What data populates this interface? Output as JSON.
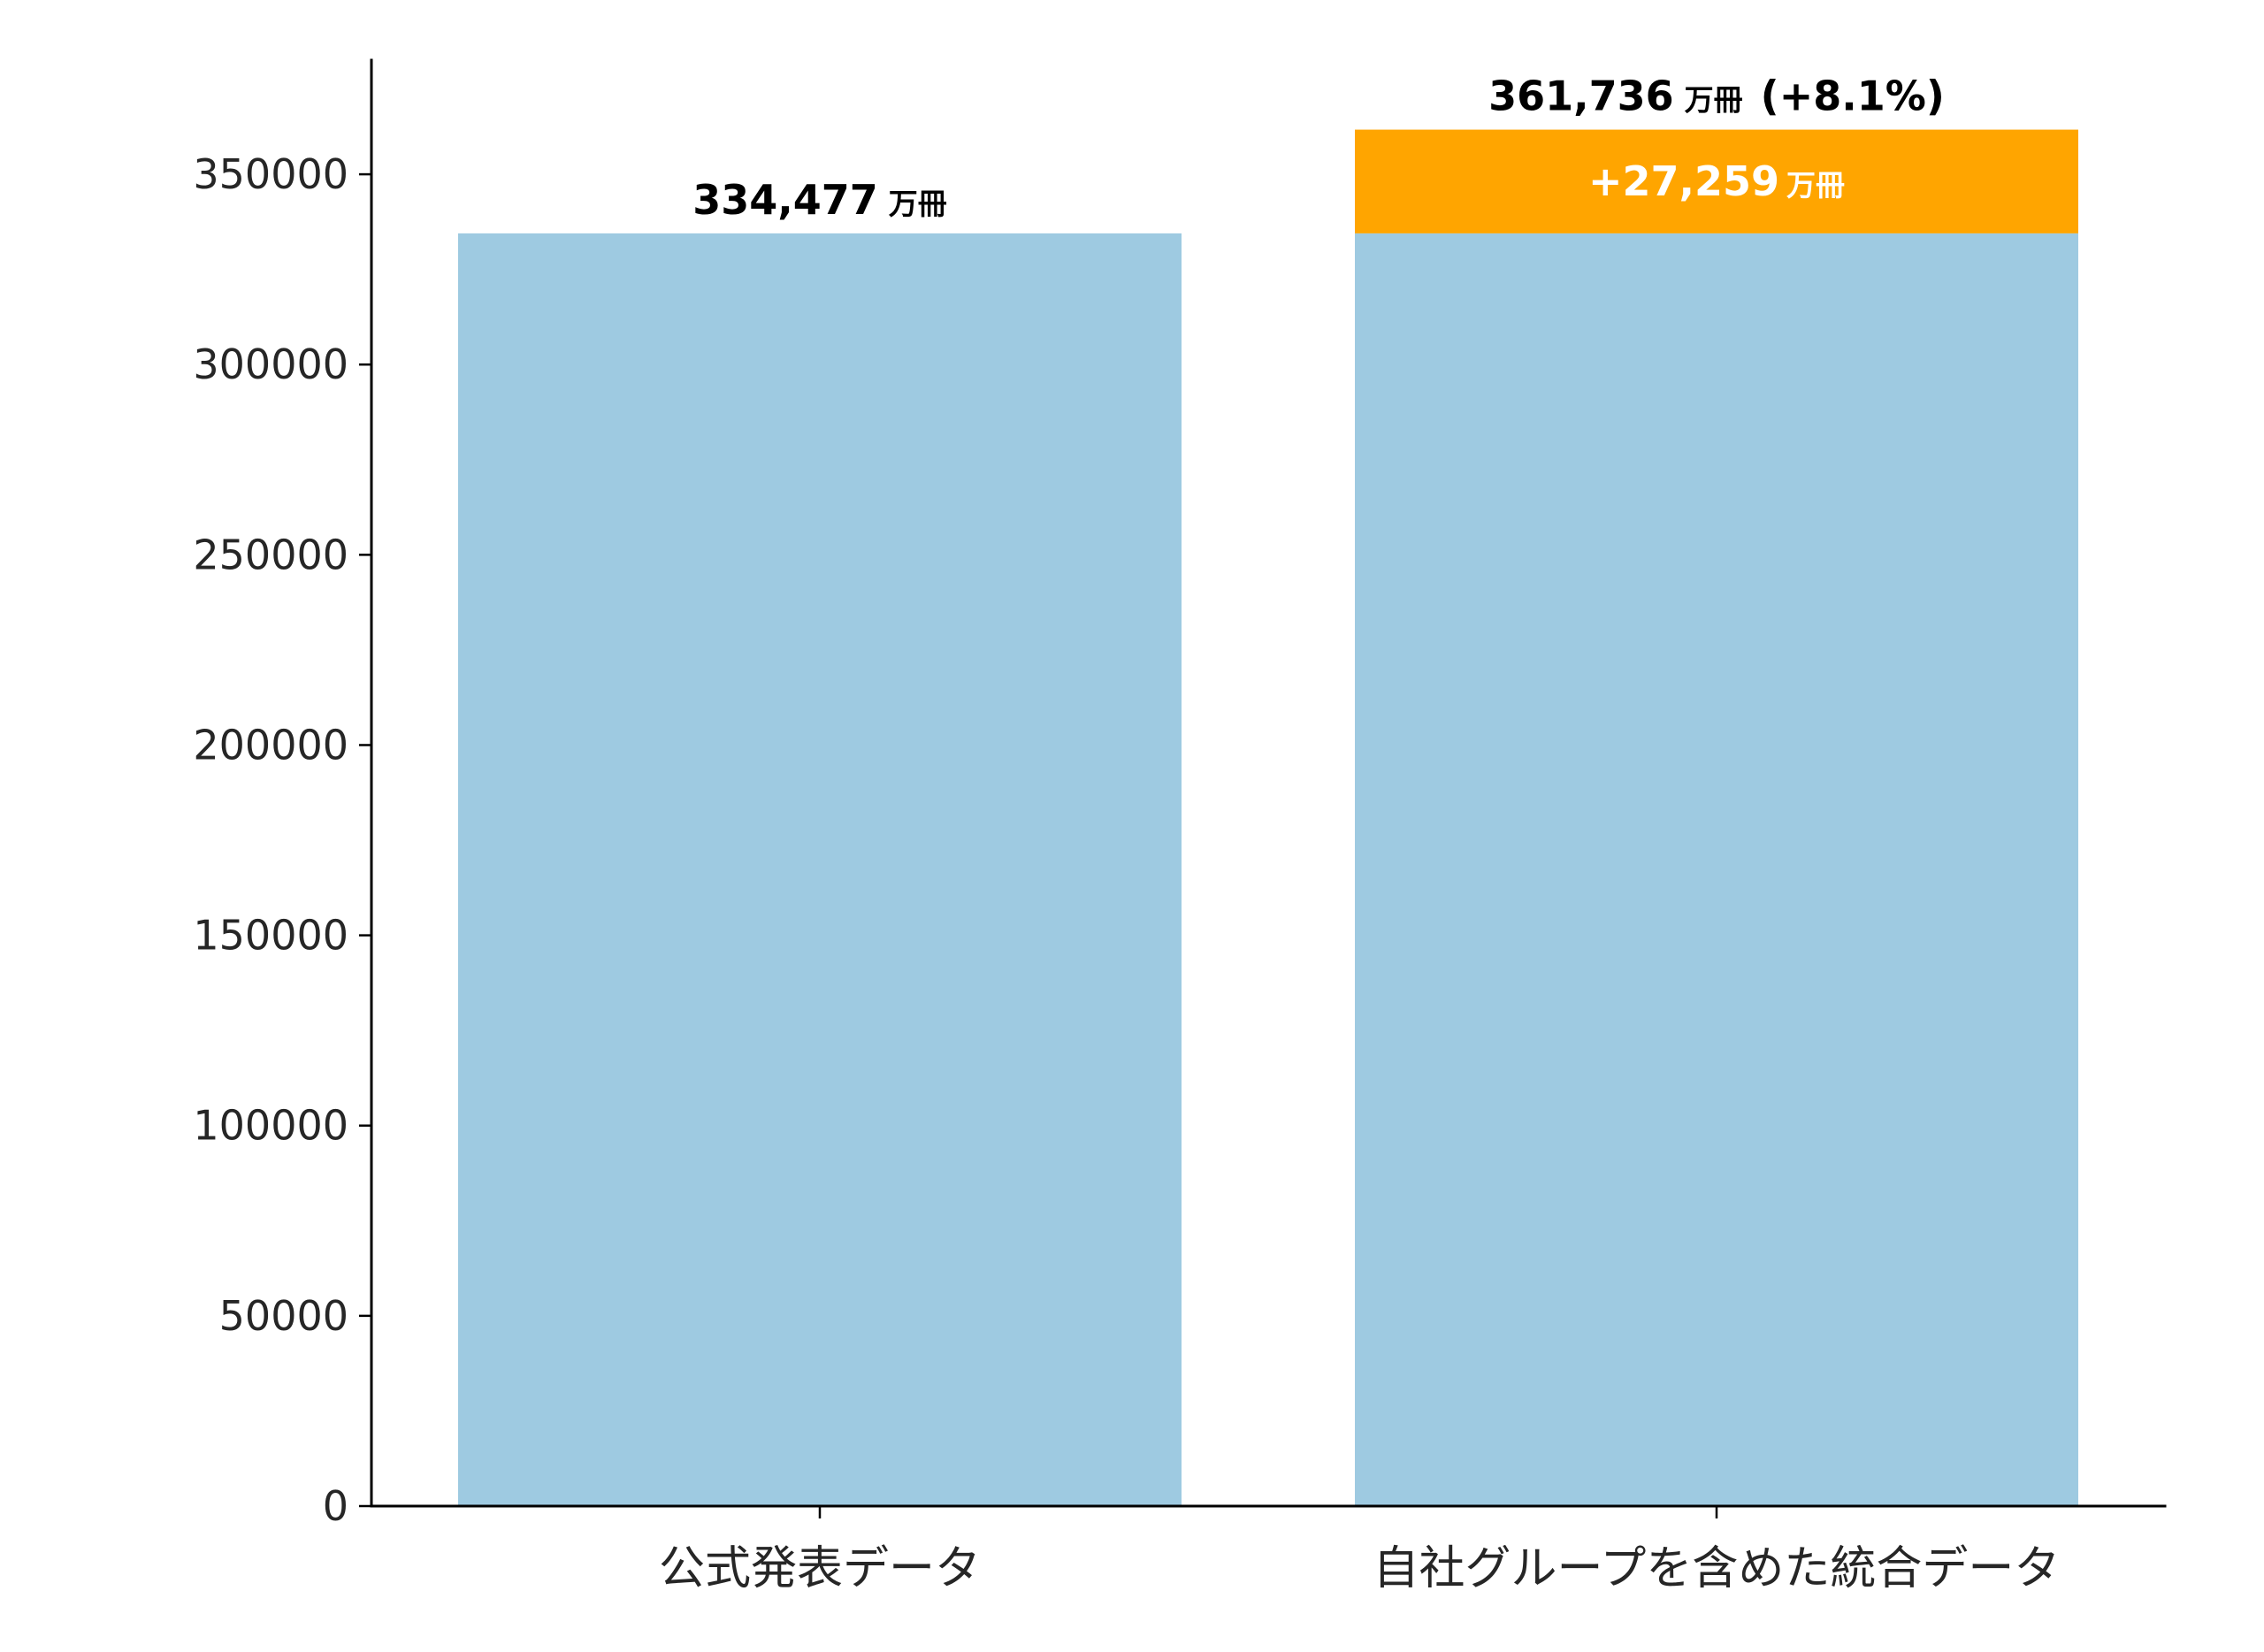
{
  "chart_data": {
    "type": "bar",
    "stacked": true,
    "categories": [
      "公式発表データ",
      "自社グループを含めた統合データ"
    ],
    "series": [
      {
        "values": [
          334477,
          334477
        ],
        "color": "#9ecae1"
      },
      {
        "values": [
          0,
          27259
        ],
        "color": "#ffa500"
      }
    ],
    "ylim": [
      0,
      380000
    ],
    "yticks": [
      0,
      50000,
      100000,
      150000,
      200000,
      250000,
      300000,
      350000
    ],
    "ytick_labels": [
      "0",
      "50000",
      "100000",
      "150000",
      "200000",
      "250000",
      "300000",
      "350000"
    ],
    "grid": false,
    "title": "",
    "xlabel": "",
    "ylabel": "",
    "annotations": {
      "bar1_total_number": "334,477",
      "bar1_total_unit": "万冊",
      "bar2_total_number": "361,736",
      "bar2_total_unit": "万冊",
      "bar2_total_suffix": "(+8.1%)",
      "bar2_increase_number": "+27,259",
      "bar2_increase_unit": "万冊"
    }
  }
}
